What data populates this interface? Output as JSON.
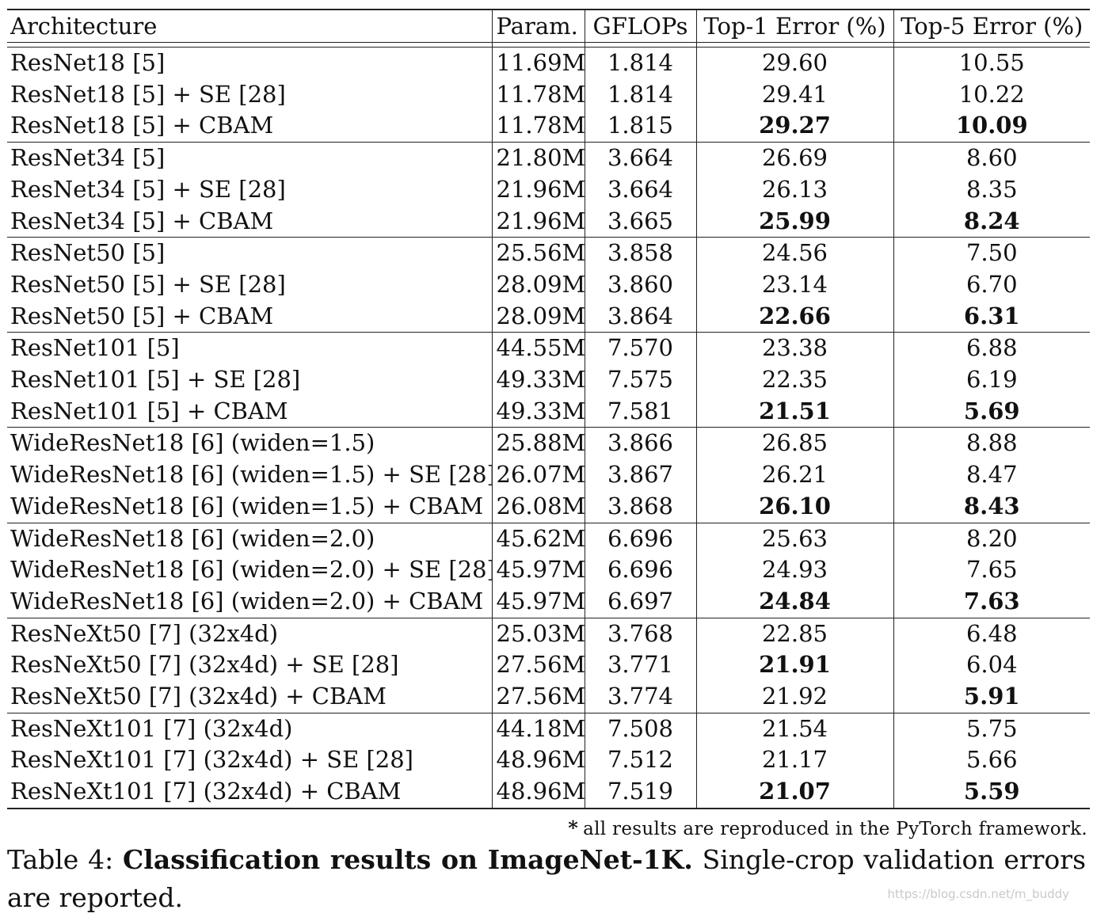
{
  "table": {
    "headers": [
      "Architecture",
      "Param.",
      "GFLOPs",
      "Top-1 Error (%)",
      "Top-5 Error (%)"
    ],
    "groups": [
      {
        "rows": [
          {
            "arch": "ResNet18 [5]",
            "param": "11.69M",
            "gflops": "1.814",
            "top1": "29.60",
            "top5": "10.55",
            "top1_best": false,
            "top5_best": false
          },
          {
            "arch": "ResNet18 [5] + SE [28]",
            "param": "11.78M",
            "gflops": "1.814",
            "top1": "29.41",
            "top5": "10.22",
            "top1_best": false,
            "top5_best": false
          },
          {
            "arch": "ResNet18 [5] + CBAM",
            "param": "11.78M",
            "gflops": "1.815",
            "top1": "29.27",
            "top5": "10.09",
            "top1_best": true,
            "top5_best": true
          }
        ]
      },
      {
        "rows": [
          {
            "arch": "ResNet34 [5]",
            "param": "21.80M",
            "gflops": "3.664",
            "top1": "26.69",
            "top5": "8.60",
            "top1_best": false,
            "top5_best": false
          },
          {
            "arch": "ResNet34 [5] + SE [28]",
            "param": "21.96M",
            "gflops": "3.664",
            "top1": "26.13",
            "top5": "8.35",
            "top1_best": false,
            "top5_best": false
          },
          {
            "arch": "ResNet34 [5] + CBAM",
            "param": "21.96M",
            "gflops": "3.665",
            "top1": "25.99",
            "top5": "8.24",
            "top1_best": true,
            "top5_best": true
          }
        ]
      },
      {
        "rows": [
          {
            "arch": "ResNet50 [5]",
            "param": "25.56M",
            "gflops": "3.858",
            "top1": "24.56",
            "top5": "7.50",
            "top1_best": false,
            "top5_best": false
          },
          {
            "arch": "ResNet50 [5] + SE [28]",
            "param": "28.09M",
            "gflops": "3.860",
            "top1": "23.14",
            "top5": "6.70",
            "top1_best": false,
            "top5_best": false
          },
          {
            "arch": "ResNet50 [5] + CBAM",
            "param": "28.09M",
            "gflops": "3.864",
            "top1": "22.66",
            "top5": "6.31",
            "top1_best": true,
            "top5_best": true
          }
        ]
      },
      {
        "rows": [
          {
            "arch": "ResNet101 [5]",
            "param": "44.55M",
            "gflops": "7.570",
            "top1": "23.38",
            "top5": "6.88",
            "top1_best": false,
            "top5_best": false
          },
          {
            "arch": "ResNet101 [5] + SE [28]",
            "param": "49.33M",
            "gflops": "7.575",
            "top1": "22.35",
            "top5": "6.19",
            "top1_best": false,
            "top5_best": false
          },
          {
            "arch": "ResNet101 [5] + CBAM",
            "param": "49.33M",
            "gflops": "7.581",
            "top1": "21.51",
            "top5": "5.69",
            "top1_best": true,
            "top5_best": true
          }
        ]
      },
      {
        "rows": [
          {
            "arch": "WideResNet18 [6] (widen=1.5)",
            "param": "25.88M",
            "gflops": "3.866",
            "top1": "26.85",
            "top5": "8.88",
            "top1_best": false,
            "top5_best": false
          },
          {
            "arch": "WideResNet18 [6] (widen=1.5) + SE [28]",
            "param": "26.07M",
            "gflops": "3.867",
            "top1": "26.21",
            "top5": "8.47",
            "top1_best": false,
            "top5_best": false
          },
          {
            "arch": "WideResNet18 [6] (widen=1.5) + CBAM",
            "param": "26.08M",
            "gflops": "3.868",
            "top1": "26.10",
            "top5": "8.43",
            "top1_best": true,
            "top5_best": true
          }
        ]
      },
      {
        "rows": [
          {
            "arch": "WideResNet18 [6] (widen=2.0)",
            "param": "45.62M",
            "gflops": "6.696",
            "top1": "25.63",
            "top5": "8.20",
            "top1_best": false,
            "top5_best": false
          },
          {
            "arch": "WideResNet18 [6] (widen=2.0) + SE [28]",
            "param": "45.97M",
            "gflops": "6.696",
            "top1": "24.93",
            "top5": "7.65",
            "top1_best": false,
            "top5_best": false
          },
          {
            "arch": "WideResNet18 [6] (widen=2.0) + CBAM",
            "param": "45.97M",
            "gflops": "6.697",
            "top1": "24.84",
            "top5": "7.63",
            "top1_best": true,
            "top5_best": true
          }
        ]
      },
      {
        "rows": [
          {
            "arch": "ResNeXt50 [7] (32x4d)",
            "param": "25.03M",
            "gflops": "3.768",
            "top1": "22.85",
            "top5": "6.48",
            "top1_best": false,
            "top5_best": false
          },
          {
            "arch": "ResNeXt50 [7] (32x4d) + SE [28]",
            "param": "27.56M",
            "gflops": "3.771",
            "top1": "21.91",
            "top5": "6.04",
            "top1_best": true,
            "top5_best": false
          },
          {
            "arch": "ResNeXt50 [7] (32x4d) + CBAM",
            "param": "27.56M",
            "gflops": "3.774",
            "top1": "21.92",
            "top5": "5.91",
            "top1_best": false,
            "top5_best": true
          }
        ]
      },
      {
        "rows": [
          {
            "arch": "ResNeXt101 [7] (32x4d)",
            "param": "44.18M",
            "gflops": "7.508",
            "top1": "21.54",
            "top5": "5.75",
            "top1_best": false,
            "top5_best": false
          },
          {
            "arch": "ResNeXt101 [7] (32x4d) + SE [28]",
            "param": "48.96M",
            "gflops": "7.512",
            "top1": "21.17",
            "top5": "5.66",
            "top1_best": false,
            "top5_best": false
          },
          {
            "arch": "ResNeXt101 [7] (32x4d) + CBAM",
            "param": "48.96M",
            "gflops": "7.519",
            "top1": "21.07",
            "top5": "5.59",
            "top1_best": true,
            "top5_best": true
          }
        ]
      }
    ]
  },
  "footnote": {
    "marker": "*",
    "text": "all results are reproduced in the PyTorch framework."
  },
  "caption": {
    "label": "Table 4:",
    "title": "Classification results on ImageNet-1K.",
    "text": "Single-crop validation errors are reported."
  },
  "watermark": "https://blog.csdn.net/m_buddy"
}
